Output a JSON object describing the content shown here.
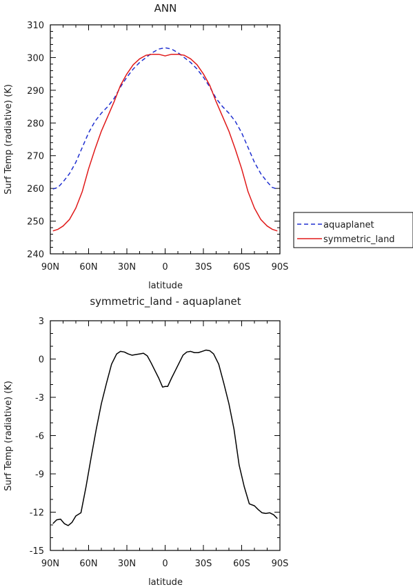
{
  "chart_data": [
    {
      "type": "line",
      "title": "ANN",
      "xlabel": "latitude",
      "ylabel": "Surf Temp (radiative) (K)",
      "xlim": [
        -90,
        90
      ],
      "ylim": [
        240,
        310
      ],
      "xticks": [
        {
          "value": -90,
          "label": "90N"
        },
        {
          "value": -60,
          "label": "60N"
        },
        {
          "value": -30,
          "label": "30N"
        },
        {
          "value": 0,
          "label": "0"
        },
        {
          "value": 30,
          "label": "30S"
        },
        {
          "value": 60,
          "label": "60S"
        },
        {
          "value": 90,
          "label": "90S"
        }
      ],
      "yticks": [
        {
          "value": 240,
          "label": "240"
        },
        {
          "value": 250,
          "label": "250"
        },
        {
          "value": 260,
          "label": "260"
        },
        {
          "value": 270,
          "label": "270"
        },
        {
          "value": 280,
          "label": "280"
        },
        {
          "value": 290,
          "label": "290"
        },
        {
          "value": 300,
          "label": "300"
        },
        {
          "value": 310,
          "label": "310"
        }
      ],
      "legend_position": "right",
      "series": [
        {
          "name": "aquaplanet",
          "color": "#1f2fd0",
          "dash": "dashed",
          "x": [
            -88,
            -84,
            -80,
            -75,
            -70,
            -65,
            -60,
            -55,
            -50,
            -45,
            -40,
            -35,
            -30,
            -25,
            -20,
            -15,
            -10,
            -5,
            0,
            5,
            10,
            15,
            20,
            25,
            30,
            35,
            40,
            45,
            50,
            55,
            60,
            65,
            70,
            75,
            80,
            84,
            88
          ],
          "y": [
            259.8,
            260.3,
            262,
            264.5,
            268,
            272.5,
            277,
            280.5,
            283,
            285,
            287.5,
            291,
            294,
            296.5,
            298.5,
            300,
            301.5,
            302.6,
            303,
            302.6,
            301.5,
            300,
            298.5,
            296.5,
            294,
            291,
            287.5,
            285,
            283,
            280.5,
            277,
            272.5,
            268,
            264.5,
            262,
            260.3,
            259.8
          ]
        },
        {
          "name": "symmetric_land",
          "color": "#e01818",
          "dash": "solid",
          "x": [
            -88,
            -84,
            -80,
            -75,
            -70,
            -65,
            -60,
            -55,
            -50,
            -45,
            -40,
            -35,
            -30,
            -25,
            -20,
            -15,
            -10,
            -5,
            0,
            5,
            10,
            15,
            20,
            25,
            30,
            35,
            40,
            45,
            50,
            55,
            60,
            65,
            70,
            75,
            80,
            84,
            88
          ],
          "y": [
            247,
            247.5,
            248.5,
            250.5,
            254,
            259,
            266,
            272,
            277.5,
            282,
            286.5,
            291.5,
            295,
            297.8,
            299.6,
            300.7,
            301,
            301,
            300.5,
            301,
            301,
            300.7,
            299.6,
            297.8,
            295,
            291.5,
            286.5,
            282,
            277.5,
            272,
            266,
            259,
            254,
            250.5,
            248.5,
            247.5,
            247
          ]
        }
      ]
    },
    {
      "type": "line",
      "title": "symmetric_land - aquaplanet",
      "xlabel": "latitude",
      "ylabel": "Surf Temp (radiative) (K)",
      "xlim": [
        -90,
        90
      ],
      "ylim": [
        -15,
        3
      ],
      "xticks": [
        {
          "value": -90,
          "label": "90N"
        },
        {
          "value": -60,
          "label": "60N"
        },
        {
          "value": -30,
          "label": "30N"
        },
        {
          "value": 0,
          "label": "0"
        },
        {
          "value": 30,
          "label": "30S"
        },
        {
          "value": 60,
          "label": "60S"
        },
        {
          "value": 90,
          "label": "90S"
        }
      ],
      "yticks": [
        {
          "value": 3,
          "label": "3"
        },
        {
          "value": 0,
          "label": "0"
        },
        {
          "value": -3,
          "label": "-3"
        },
        {
          "value": -6,
          "label": "-6"
        },
        {
          "value": -9,
          "label": "-9"
        },
        {
          "value": -12,
          "label": "-12"
        },
        {
          "value": -15,
          "label": "-15"
        }
      ],
      "series": [
        {
          "color": "#000000",
          "dash": "solid",
          "x": [
            -88,
            -85,
            -82,
            -79,
            -76,
            -73,
            -70,
            -66,
            -62,
            -58,
            -54,
            -50,
            -46,
            -42,
            -38,
            -35,
            -32,
            -29,
            -26,
            -23,
            -20,
            -17,
            -14,
            -11,
            -8,
            -5,
            -2,
            0,
            2,
            5,
            8,
            11,
            14,
            17,
            20,
            23,
            26,
            29,
            32,
            35,
            38,
            42,
            46,
            50,
            54,
            58,
            62,
            66,
            70,
            73,
            76,
            79,
            82,
            85,
            88
          ],
          "y": [
            -12.9,
            -12.6,
            -12.55,
            -12.9,
            -13.05,
            -12.8,
            -12.3,
            -12.05,
            -10,
            -7.7,
            -5.5,
            -3.5,
            -1.9,
            -0.4,
            0.4,
            0.6,
            0.55,
            0.4,
            0.3,
            0.35,
            0.4,
            0.45,
            0.25,
            -0.3,
            -0.9,
            -1.5,
            -2.2,
            -2.15,
            -2.15,
            -1.5,
            -0.9,
            -0.3,
            0.3,
            0.55,
            0.6,
            0.5,
            0.5,
            0.6,
            0.7,
            0.65,
            0.4,
            -0.4,
            -1.9,
            -3.5,
            -5.5,
            -8.3,
            -10,
            -11.35,
            -11.5,
            -11.8,
            -12.05,
            -12.1,
            -12.05,
            -12.2,
            -12.5
          ]
        }
      ]
    }
  ]
}
